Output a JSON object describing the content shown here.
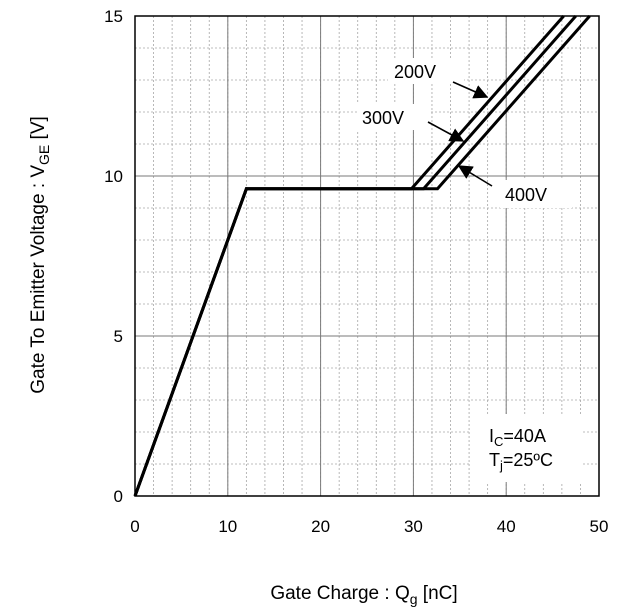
{
  "chart_data": {
    "type": "line",
    "title": "",
    "xlabel": "Gate Charge : Q",
    "xlabel_sub": "g",
    "xlabel_unit": " [nC]",
    "ylabel": "Gate To Emitter Voltage : V",
    "ylabel_sub": "GE",
    "ylabel_unit": " [V]",
    "xlim": [
      0,
      50
    ],
    "ylim": [
      0,
      15
    ],
    "x_ticks": [
      0,
      10,
      20,
      30,
      40,
      50
    ],
    "y_ticks": [
      0,
      5,
      10,
      15
    ],
    "grid": true,
    "series": [
      {
        "name": "200V",
        "x": [
          0,
          12,
          29.8,
          46.2
        ],
        "y": [
          0,
          9.6,
          9.6,
          15
        ]
      },
      {
        "name": "300V",
        "x": [
          0,
          12,
          31.1,
          47.5
        ],
        "y": [
          0,
          9.6,
          9.6,
          15
        ]
      },
      {
        "name": "400V",
        "x": [
          0,
          12,
          32.6,
          49.0
        ],
        "y": [
          0,
          9.6,
          9.6,
          15
        ]
      }
    ],
    "annotations": {
      "label_200": "200V",
      "label_300": "300V",
      "label_400": "400V",
      "ic_main": "I",
      "ic_sub": "C",
      "ic_rest": "=40A",
      "tj_main": "T",
      "tj_sub": "j",
      "tj_rest": "=25ºC"
    }
  }
}
